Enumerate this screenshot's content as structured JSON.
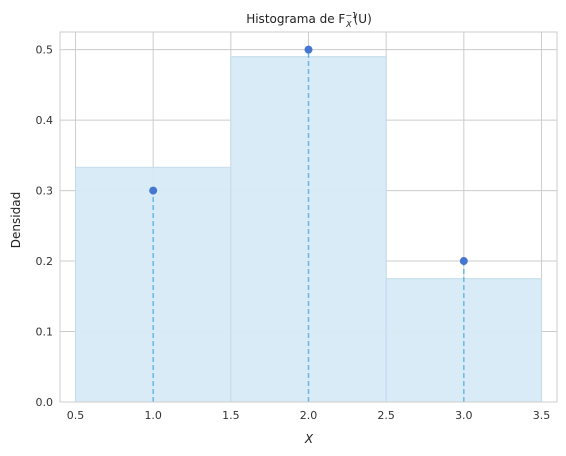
{
  "chart_data": {
    "type": "bar",
    "title": "Histograma de F",
    "title_sub": "X",
    "title_sup": "−1",
    "title_tail": "(U)",
    "xlabel": "X",
    "ylabel": "Densidad",
    "xlim": [
      0.4,
      3.6
    ],
    "ylim": [
      0,
      0.525
    ],
    "x_ticks": [
      0.5,
      1.0,
      1.5,
      2.0,
      2.5,
      3.0,
      3.5
    ],
    "x_tick_labels": [
      "0.5",
      "1.0",
      "1.5",
      "2.0",
      "2.5",
      "3.0",
      "3.5"
    ],
    "y_ticks": [
      0.0,
      0.1,
      0.2,
      0.3,
      0.4,
      0.5
    ],
    "y_tick_labels": [
      "0.0",
      "0.1",
      "0.2",
      "0.3",
      "0.4",
      "0.5"
    ],
    "grid": true,
    "histogram": {
      "bin_edges": [
        0.5,
        1.5,
        2.5,
        3.5
      ],
      "densities": [
        0.333,
        0.49,
        0.175
      ]
    },
    "pmf_points": {
      "x": [
        1.0,
        2.0,
        3.0
      ],
      "y": [
        0.3,
        0.5,
        0.2
      ]
    },
    "colors": {
      "bar_fill": "#d6eaf5",
      "bar_edge": "#c3dcec",
      "point": "#4677d0",
      "stem": "#6ab8e0",
      "grid": "#cccccc",
      "spine": "#cccccc"
    }
  }
}
